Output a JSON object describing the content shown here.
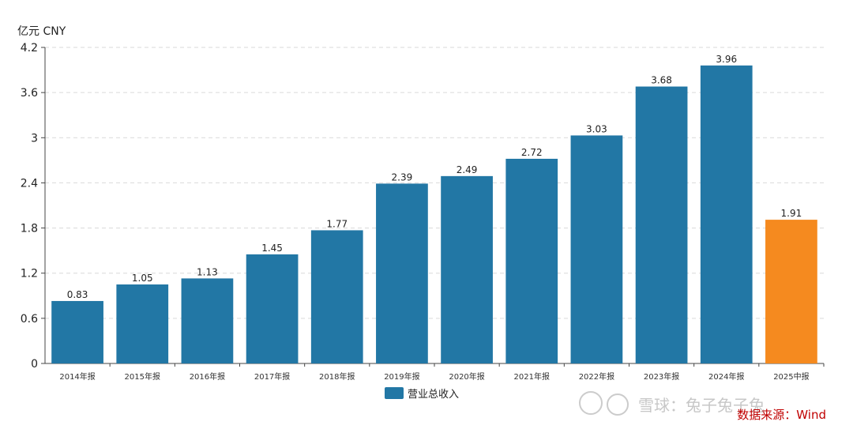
{
  "chart_data": {
    "type": "bar",
    "unit_label": "亿元  CNY",
    "categories": [
      "2014年报",
      "2015年报",
      "2016年报",
      "2017年报",
      "2018年报",
      "2019年报",
      "2020年报",
      "2021年报",
      "2022年报",
      "2023年报",
      "2024年报",
      "2025中报"
    ],
    "series": [
      {
        "name": "营业总收入",
        "values": [
          0.83,
          1.05,
          1.13,
          1.45,
          1.77,
          2.39,
          2.49,
          2.72,
          3.03,
          3.68,
          3.96,
          1.91
        ],
        "value_labels": [
          "0.83",
          "1.05",
          "1.13",
          "1.45",
          "1.77",
          "2.39",
          "2.49",
          "2.72",
          "3.03",
          "3.68",
          "3.96",
          "1.91"
        ]
      }
    ],
    "highlight_index": 11,
    "y_ticks": [
      "0",
      "0.6",
      "1.2",
      "1.8",
      "2.4",
      "3",
      "3.6",
      "4.2"
    ],
    "ylim": [
      0,
      4.2
    ],
    "grid": true,
    "legend_position": "bottom-center",
    "colors": {
      "bar": "#2277a5",
      "highlight": "#f58a1f",
      "grid": "#d9d9d9"
    }
  },
  "source_note": "数据来源：Wind",
  "watermark": "雪球：兔子兔子兔"
}
